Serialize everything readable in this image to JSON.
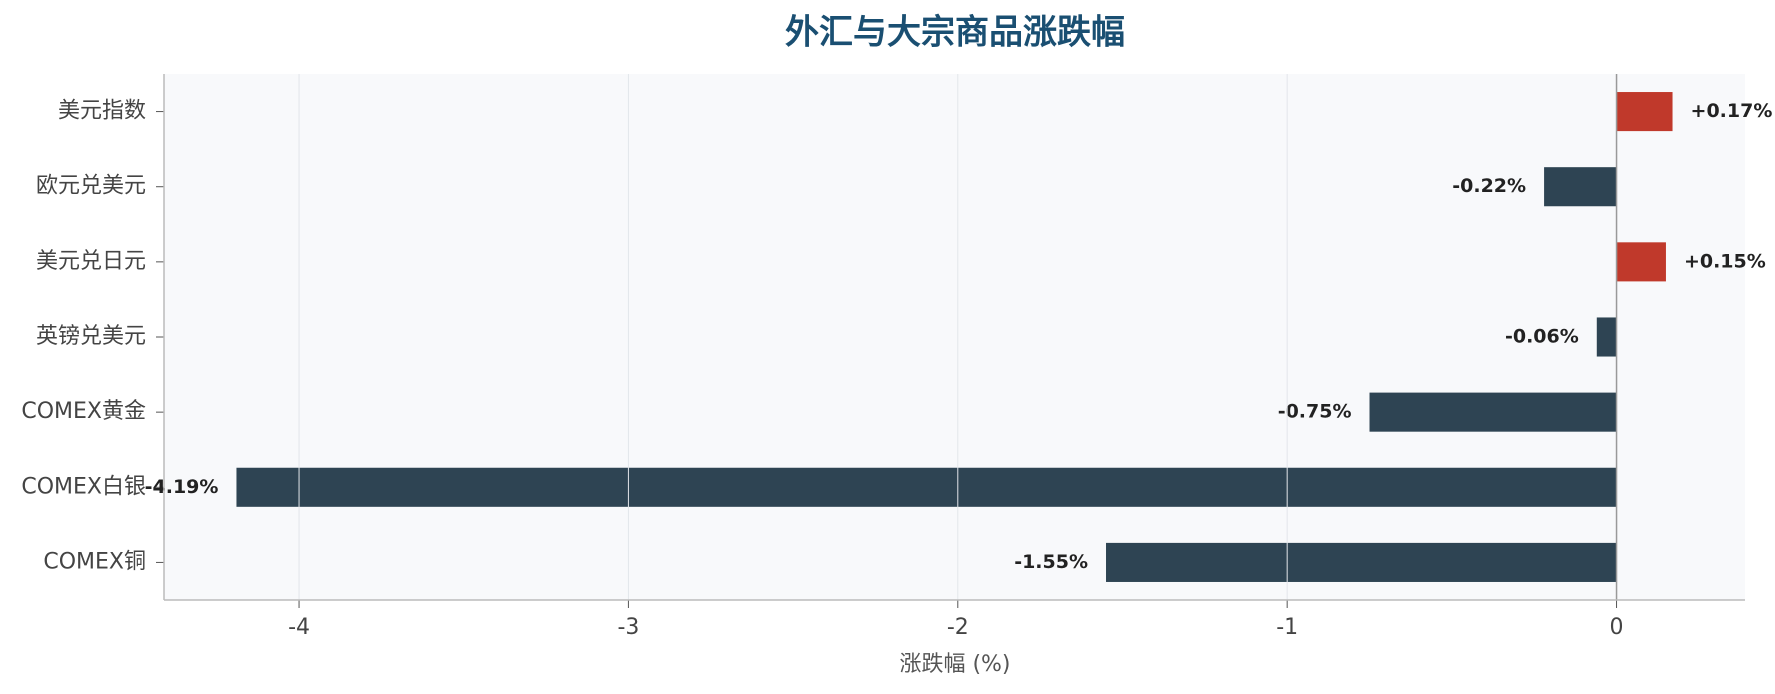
{
  "chart_data": {
    "type": "barh",
    "title": "外汇与大宗商品涨跌幅",
    "x_label": "涨跌幅 (%)",
    "categories": [
      "美元指数",
      "欧元兑美元",
      "美元兑日元",
      "英镑兑美元",
      "COMEX黄金",
      "COMEX白银",
      "COMEX铜"
    ],
    "values": [
      0.17,
      -0.22,
      0.15,
      -0.06,
      -0.75,
      -4.19,
      -1.55
    ],
    "value_labels": [
      "+0.17%",
      "-0.22%",
      "+0.15%",
      "-0.06%",
      "-0.75%",
      "-4.19%",
      "-1.55%"
    ],
    "colors": [
      "#c0392b",
      "#2e4453",
      "#c0392b",
      "#2e4453",
      "#2e4453",
      "#2e4453",
      "#2e4453"
    ],
    "xlim": [
      -4.41,
      0.39
    ],
    "xticks": [
      -4,
      -3,
      -2,
      -1,
      0
    ],
    "grid": true
  }
}
